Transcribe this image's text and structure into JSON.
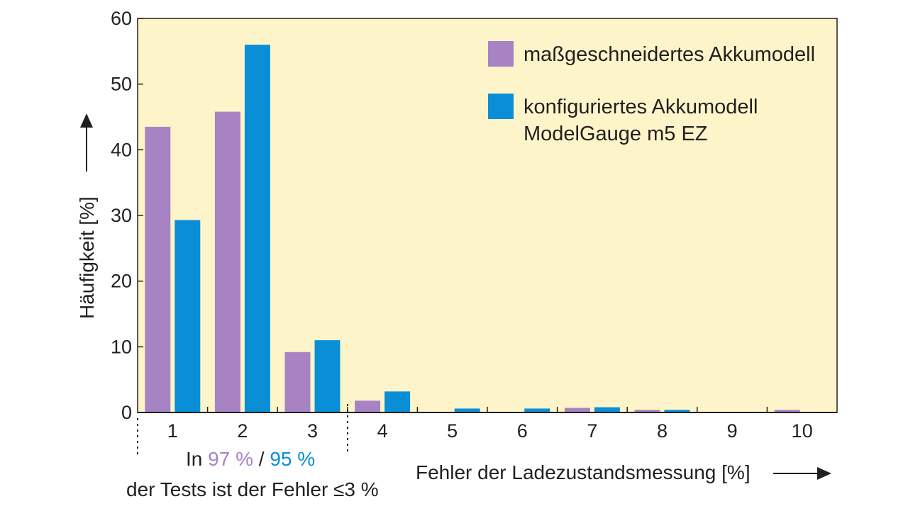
{
  "chart_data": {
    "type": "bar",
    "categories": [
      "1",
      "2",
      "3",
      "4",
      "5",
      "6",
      "7",
      "8",
      "9",
      "10"
    ],
    "series": [
      {
        "name": "maßgeschneidertes Akkumodell",
        "color": "#a883c4",
        "values": [
          43.5,
          45.8,
          9.2,
          1.8,
          0,
          0,
          0.7,
          0.4,
          0,
          0.4
        ]
      },
      {
        "name": "konfiguriertes Akkumodell ModelGauge m5 EZ",
        "color": "#0a8fd6",
        "values": [
          29.3,
          56.0,
          11.0,
          3.2,
          0.6,
          0.6,
          0.8,
          0.4,
          0,
          0
        ]
      }
    ],
    "legend_lines": [
      [
        "maßgeschneidertes Akkumodell"
      ],
      [
        "konfiguriertes Akkumodell",
        "ModelGauge m5 EZ"
      ]
    ],
    "xlabel": "Fehler der Ladezustandsmessung [%]",
    "ylabel": "Häufigkeit [%]",
    "ylim": [
      0,
      60
    ],
    "yticks": [
      "0",
      "10",
      "20",
      "30",
      "40",
      "50",
      "60"
    ],
    "legend_position": "top-right",
    "plot_background": "#fdf5c9",
    "annotation": {
      "prefix": "In",
      "value_a": "97 %",
      "separator": "/",
      "value_b": "95 %",
      "line2": "der Tests ist der Fehler ≤3 %"
    }
  }
}
